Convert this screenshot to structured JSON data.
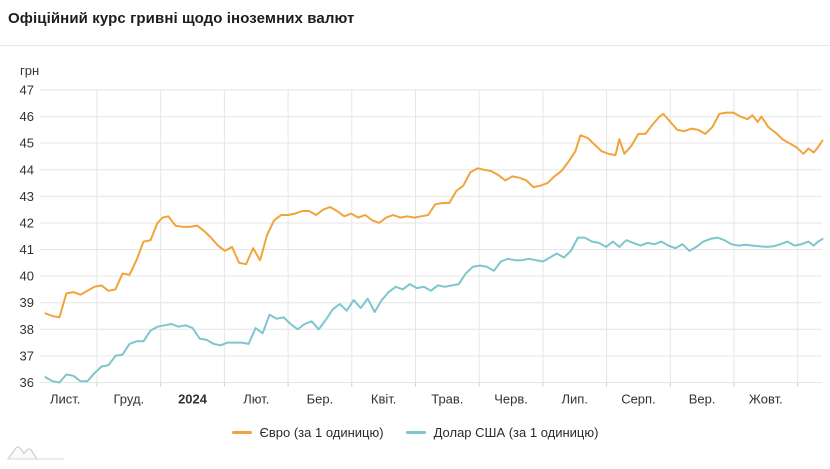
{
  "title": "Офіційний курс гривні щодо іноземних валют",
  "chart_data": {
    "type": "line",
    "title": "Офіційний курс гривні щодо іноземних валют",
    "ylabel": "грн",
    "ylim": [
      36,
      47
    ],
    "y_ticks": [
      47,
      46,
      45,
      44,
      43,
      42,
      41,
      40,
      39,
      38,
      37,
      36
    ],
    "x_tick_labels": [
      "Лист.",
      "Груд.",
      "2024",
      "Лют.",
      "Бер.",
      "Квіт.",
      "Трав.",
      "Черв.",
      "Лип.",
      "Серп.",
      "Вер.",
      "Жовт."
    ],
    "x_bold_label": "2024",
    "x_unit": "months since 2023-11-01",
    "grid": true,
    "legend_position": "bottom",
    "colors": {
      "grid": "#e6e6e6",
      "tick": "#cccccc",
      "axis_text": "#333333"
    },
    "series": [
      {
        "name": "Євро (за 1 одиницю)",
        "color": "#f0a43c",
        "points": [
          [
            0.19,
            38.6
          ],
          [
            0.3,
            38.5
          ],
          [
            0.41,
            38.45
          ],
          [
            0.52,
            39.35
          ],
          [
            0.63,
            39.4
          ],
          [
            0.74,
            39.3
          ],
          [
            0.85,
            39.45
          ],
          [
            0.96,
            39.6
          ],
          [
            1.07,
            39.65
          ],
          [
            1.18,
            39.45
          ],
          [
            1.29,
            39.5
          ],
          [
            1.4,
            40.1
          ],
          [
            1.51,
            40.05
          ],
          [
            1.62,
            40.6
          ],
          [
            1.73,
            41.3
          ],
          [
            1.84,
            41.35
          ],
          [
            1.95,
            42.0
          ],
          [
            2.03,
            42.2
          ],
          [
            2.12,
            42.25
          ],
          [
            2.23,
            41.9
          ],
          [
            2.35,
            41.85
          ],
          [
            2.46,
            41.85
          ],
          [
            2.57,
            41.9
          ],
          [
            2.68,
            41.7
          ],
          [
            2.79,
            41.45
          ],
          [
            2.9,
            41.15
          ],
          [
            3.01,
            40.95
          ],
          [
            3.12,
            41.1
          ],
          [
            3.23,
            40.5
          ],
          [
            3.34,
            40.45
          ],
          [
            3.45,
            41.05
          ],
          [
            3.56,
            40.6
          ],
          [
            3.67,
            41.55
          ],
          [
            3.78,
            42.1
          ],
          [
            3.89,
            42.3
          ],
          [
            4.0,
            42.3
          ],
          [
            4.11,
            42.35
          ],
          [
            4.22,
            42.45
          ],
          [
            4.33,
            42.45
          ],
          [
            4.44,
            42.3
          ],
          [
            4.55,
            42.5
          ],
          [
            4.66,
            42.6
          ],
          [
            4.77,
            42.45
          ],
          [
            4.88,
            42.25
          ],
          [
            4.99,
            42.35
          ],
          [
            5.1,
            42.2
          ],
          [
            5.21,
            42.3
          ],
          [
            5.32,
            42.1
          ],
          [
            5.43,
            42.0
          ],
          [
            5.54,
            42.2
          ],
          [
            5.65,
            42.3
          ],
          [
            5.76,
            42.2
          ],
          [
            5.87,
            42.25
          ],
          [
            5.98,
            42.2
          ],
          [
            6.09,
            42.25
          ],
          [
            6.2,
            42.3
          ],
          [
            6.31,
            42.7
          ],
          [
            6.42,
            42.75
          ],
          [
            6.53,
            42.75
          ],
          [
            6.64,
            43.2
          ],
          [
            6.75,
            43.4
          ],
          [
            6.86,
            43.9
          ],
          [
            6.97,
            44.05
          ],
          [
            7.08,
            44.0
          ],
          [
            7.19,
            43.95
          ],
          [
            7.3,
            43.8
          ],
          [
            7.41,
            43.6
          ],
          [
            7.52,
            43.75
          ],
          [
            7.63,
            43.7
          ],
          [
            7.74,
            43.6
          ],
          [
            7.85,
            43.35
          ],
          [
            7.96,
            43.4
          ],
          [
            8.07,
            43.5
          ],
          [
            8.18,
            43.75
          ],
          [
            8.29,
            43.95
          ],
          [
            8.4,
            44.3
          ],
          [
            8.51,
            44.7
          ],
          [
            8.59,
            45.3
          ],
          [
            8.7,
            45.2
          ],
          [
            8.81,
            44.95
          ],
          [
            8.92,
            44.7
          ],
          [
            9.03,
            44.6
          ],
          [
            9.14,
            44.55
          ],
          [
            9.2,
            45.15
          ],
          [
            9.28,
            44.6
          ],
          [
            9.39,
            44.9
          ],
          [
            9.5,
            45.35
          ],
          [
            9.61,
            45.35
          ],
          [
            9.72,
            45.7
          ],
          [
            9.83,
            46.0
          ],
          [
            9.89,
            46.1
          ],
          [
            10.0,
            45.8
          ],
          [
            10.11,
            45.5
          ],
          [
            10.22,
            45.45
          ],
          [
            10.33,
            45.55
          ],
          [
            10.44,
            45.5
          ],
          [
            10.55,
            45.35
          ],
          [
            10.66,
            45.6
          ],
          [
            10.77,
            46.1
          ],
          [
            10.88,
            46.15
          ],
          [
            10.99,
            46.15
          ],
          [
            11.1,
            46.0
          ],
          [
            11.21,
            45.9
          ],
          [
            11.29,
            46.05
          ],
          [
            11.37,
            45.8
          ],
          [
            11.43,
            46.0
          ],
          [
            11.54,
            45.6
          ],
          [
            11.65,
            45.4
          ],
          [
            11.76,
            45.15
          ],
          [
            11.87,
            45.0
          ],
          [
            11.98,
            44.85
          ],
          [
            12.09,
            44.6
          ],
          [
            12.17,
            44.8
          ],
          [
            12.25,
            44.65
          ],
          [
            12.32,
            44.85
          ],
          [
            12.39,
            45.1
          ]
        ]
      },
      {
        "name": "Долар США (за 1 одиницю)",
        "color": "#7dc6ce",
        "points": [
          [
            0.19,
            36.2
          ],
          [
            0.3,
            36.05
          ],
          [
            0.41,
            36.0
          ],
          [
            0.52,
            36.3
          ],
          [
            0.63,
            36.25
          ],
          [
            0.74,
            36.05
          ],
          [
            0.85,
            36.05
          ],
          [
            0.96,
            36.35
          ],
          [
            1.07,
            36.6
          ],
          [
            1.18,
            36.65
          ],
          [
            1.29,
            37.0
          ],
          [
            1.4,
            37.05
          ],
          [
            1.51,
            37.45
          ],
          [
            1.62,
            37.55
          ],
          [
            1.73,
            37.55
          ],
          [
            1.84,
            37.95
          ],
          [
            1.95,
            38.1
          ],
          [
            2.06,
            38.15
          ],
          [
            2.17,
            38.2
          ],
          [
            2.28,
            38.1
          ],
          [
            2.39,
            38.15
          ],
          [
            2.5,
            38.05
          ],
          [
            2.61,
            37.65
          ],
          [
            2.72,
            37.6
          ],
          [
            2.83,
            37.45
          ],
          [
            2.94,
            37.4
          ],
          [
            3.05,
            37.5
          ],
          [
            3.16,
            37.5
          ],
          [
            3.27,
            37.5
          ],
          [
            3.38,
            37.45
          ],
          [
            3.49,
            38.05
          ],
          [
            3.6,
            37.85
          ],
          [
            3.71,
            38.55
          ],
          [
            3.82,
            38.4
          ],
          [
            3.93,
            38.45
          ],
          [
            4.04,
            38.2
          ],
          [
            4.15,
            38.0
          ],
          [
            4.26,
            38.2
          ],
          [
            4.37,
            38.3
          ],
          [
            4.48,
            38.0
          ],
          [
            4.59,
            38.35
          ],
          [
            4.7,
            38.75
          ],
          [
            4.81,
            38.95
          ],
          [
            4.92,
            38.7
          ],
          [
            5.03,
            39.1
          ],
          [
            5.14,
            38.8
          ],
          [
            5.25,
            39.15
          ],
          [
            5.36,
            38.65
          ],
          [
            5.47,
            39.1
          ],
          [
            5.58,
            39.4
          ],
          [
            5.69,
            39.6
          ],
          [
            5.8,
            39.5
          ],
          [
            5.91,
            39.7
          ],
          [
            6.02,
            39.55
          ],
          [
            6.13,
            39.6
          ],
          [
            6.24,
            39.45
          ],
          [
            6.35,
            39.65
          ],
          [
            6.46,
            39.6
          ],
          [
            6.57,
            39.65
          ],
          [
            6.68,
            39.7
          ],
          [
            6.79,
            40.1
          ],
          [
            6.9,
            40.35
          ],
          [
            7.01,
            40.4
          ],
          [
            7.12,
            40.35
          ],
          [
            7.23,
            40.2
          ],
          [
            7.34,
            40.55
          ],
          [
            7.45,
            40.65
          ],
          [
            7.56,
            40.6
          ],
          [
            7.67,
            40.6
          ],
          [
            7.78,
            40.65
          ],
          [
            7.89,
            40.6
          ],
          [
            8.0,
            40.55
          ],
          [
            8.11,
            40.7
          ],
          [
            8.22,
            40.85
          ],
          [
            8.33,
            40.7
          ],
          [
            8.44,
            40.95
          ],
          [
            8.55,
            41.45
          ],
          [
            8.66,
            41.45
          ],
          [
            8.77,
            41.3
          ],
          [
            8.88,
            41.25
          ],
          [
            8.99,
            41.1
          ],
          [
            9.1,
            41.3
          ],
          [
            9.2,
            41.1
          ],
          [
            9.31,
            41.35
          ],
          [
            9.42,
            41.25
          ],
          [
            9.53,
            41.15
          ],
          [
            9.64,
            41.25
          ],
          [
            9.75,
            41.2
          ],
          [
            9.86,
            41.3
          ],
          [
            9.97,
            41.15
          ],
          [
            10.08,
            41.05
          ],
          [
            10.19,
            41.2
          ],
          [
            10.3,
            40.95
          ],
          [
            10.41,
            41.1
          ],
          [
            10.52,
            41.3
          ],
          [
            10.63,
            41.4
          ],
          [
            10.74,
            41.45
          ],
          [
            10.85,
            41.35
          ],
          [
            10.96,
            41.2
          ],
          [
            11.07,
            41.15
          ],
          [
            11.18,
            41.18
          ],
          [
            11.29,
            41.15
          ],
          [
            11.4,
            41.12
          ],
          [
            11.51,
            41.1
          ],
          [
            11.62,
            41.12
          ],
          [
            11.73,
            41.2
          ],
          [
            11.84,
            41.3
          ],
          [
            11.95,
            41.15
          ],
          [
            12.06,
            41.2
          ],
          [
            12.17,
            41.3
          ],
          [
            12.25,
            41.15
          ],
          [
            12.32,
            41.3
          ],
          [
            12.39,
            41.4
          ]
        ]
      }
    ]
  }
}
